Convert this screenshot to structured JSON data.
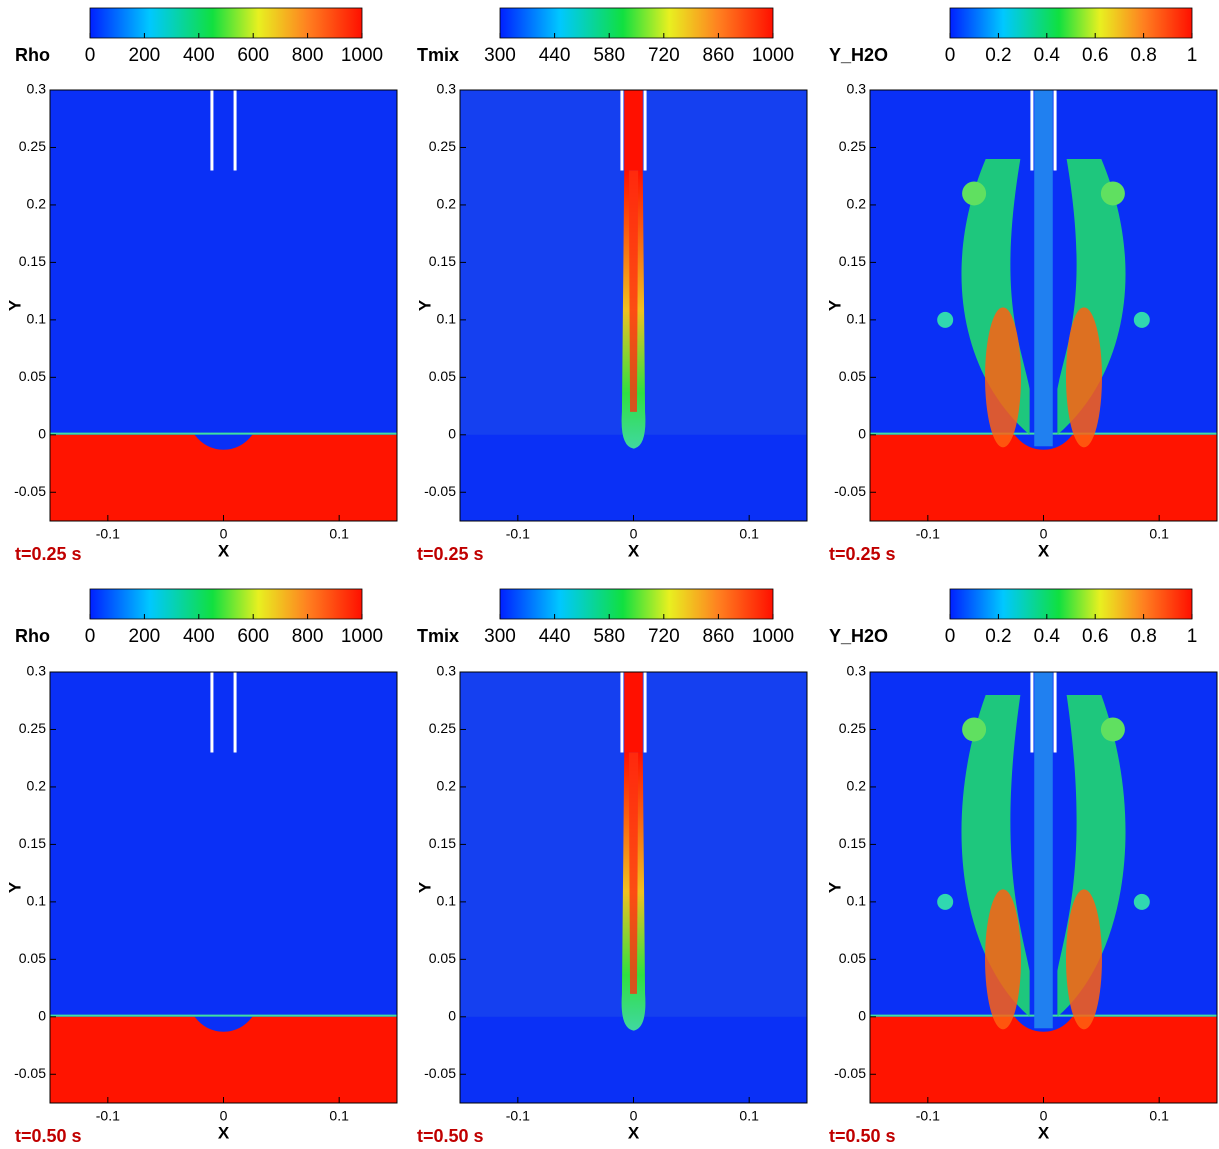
{
  "chart_data": [
    {
      "type": "contour",
      "colorbar": {
        "label": "Rho",
        "lim": [
          0,
          1000
        ],
        "ticks": [
          0,
          200,
          400,
          600,
          800,
          1000
        ]
      },
      "xlabel": "X",
      "ylabel": "Y",
      "xlim": [
        -0.15,
        0.15
      ],
      "ylim": [
        -0.075,
        0.3
      ],
      "xticks": [
        -0.1,
        0,
        0.1
      ],
      "yticks": [
        -0.05,
        0,
        0.05,
        0.1,
        0.15,
        0.2,
        0.25,
        0.3
      ],
      "annotation": "t=0.25 s"
    },
    {
      "type": "contour",
      "colorbar": {
        "label": "Tmix",
        "lim": [
          300,
          1000
        ],
        "ticks": [
          300,
          440,
          580,
          720,
          860,
          1000
        ]
      },
      "xlabel": "X",
      "ylabel": "Y",
      "xlim": [
        -0.15,
        0.15
      ],
      "ylim": [
        -0.075,
        0.3
      ],
      "xticks": [
        -0.1,
        0,
        0.1
      ],
      "yticks": [
        -0.05,
        0,
        0.05,
        0.1,
        0.15,
        0.2,
        0.25,
        0.3
      ],
      "annotation": "t=0.25 s"
    },
    {
      "type": "contour",
      "colorbar": {
        "label": "Y_H2O",
        "lim": [
          0,
          1
        ],
        "ticks": [
          0,
          0.2,
          0.4,
          0.6,
          0.8,
          1
        ]
      },
      "xlabel": "X",
      "ylabel": "Y",
      "xlim": [
        -0.15,
        0.15
      ],
      "ylim": [
        -0.075,
        0.3
      ],
      "xticks": [
        -0.1,
        0,
        0.1
      ],
      "yticks": [
        -0.05,
        0,
        0.05,
        0.1,
        0.15,
        0.2,
        0.25,
        0.3
      ],
      "annotation": "t=0.25 s"
    },
    {
      "type": "contour",
      "colorbar": {
        "label": "Rho",
        "lim": [
          0,
          1000
        ],
        "ticks": [
          0,
          200,
          400,
          600,
          800,
          1000
        ]
      },
      "xlabel": "X",
      "ylabel": "Y",
      "xlim": [
        -0.15,
        0.15
      ],
      "ylim": [
        -0.075,
        0.3
      ],
      "xticks": [
        -0.1,
        0,
        0.1
      ],
      "yticks": [
        -0.05,
        0,
        0.05,
        0.1,
        0.15,
        0.2,
        0.25,
        0.3
      ],
      "annotation": "t=0.50 s"
    },
    {
      "type": "contour",
      "colorbar": {
        "label": "Tmix",
        "lim": [
          300,
          1000
        ],
        "ticks": [
          300,
          440,
          580,
          720,
          860,
          1000
        ]
      },
      "xlabel": "X",
      "ylabel": "Y",
      "xlim": [
        -0.15,
        0.15
      ],
      "ylim": [
        -0.075,
        0.3
      ],
      "xticks": [
        -0.1,
        0,
        0.1
      ],
      "yticks": [
        -0.05,
        0,
        0.05,
        0.1,
        0.15,
        0.2,
        0.25,
        0.3
      ],
      "annotation": "t=0.50 s"
    },
    {
      "type": "contour",
      "colorbar": {
        "label": "Y_H2O",
        "lim": [
          0,
          1
        ],
        "ticks": [
          0,
          0.2,
          0.4,
          0.6,
          0.8,
          1
        ]
      },
      "xlabel": "X",
      "ylabel": "Y",
      "xlim": [
        -0.15,
        0.15
      ],
      "ylim": [
        -0.075,
        0.3
      ],
      "xticks": [
        -0.1,
        0,
        0.1
      ],
      "yticks": [
        -0.05,
        0,
        0.05,
        0.1,
        0.15,
        0.2,
        0.25,
        0.3
      ],
      "annotation": "t=0.50 s"
    }
  ]
}
